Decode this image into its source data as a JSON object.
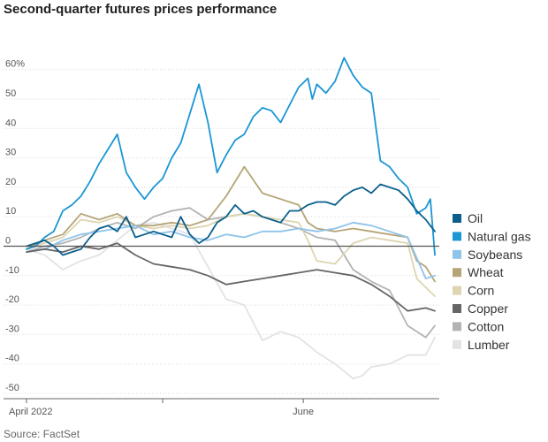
{
  "chart_data": {
    "type": "line",
    "title": "Second-quarter futures prices performance",
    "source": "Source: FactSet",
    "y_unit_suffix": "%",
    "ylim": [
      -50,
      65
    ],
    "y_ticks": [
      60,
      50,
      40,
      30,
      20,
      10,
      0,
      -10,
      -20,
      -30,
      -40,
      -50
    ],
    "x_ticks": [
      {
        "t": 0,
        "label": "April 2022"
      },
      {
        "t": 30,
        "label": ""
      },
      {
        "t": 61,
        "label": "June"
      }
    ],
    "x_range": [
      0,
      90
    ],
    "zero_line": true,
    "legend_position": "right",
    "series": [
      {
        "name": "Oil",
        "color": "#0a5f8c",
        "t": [
          0,
          2,
          4,
          6,
          8,
          10,
          12,
          14,
          16,
          18,
          20,
          22,
          24,
          26,
          28,
          30,
          32,
          34,
          36,
          38,
          40,
          42,
          44,
          46,
          48,
          50,
          52,
          54,
          56,
          58,
          60,
          62,
          64,
          66,
          68,
          70,
          72,
          74,
          76,
          78,
          80,
          82,
          84,
          86,
          88,
          90
        ],
        "y": [
          0,
          1,
          2,
          0,
          -3,
          -2,
          -1,
          3,
          6,
          7,
          5,
          10,
          3,
          4,
          5,
          4,
          3,
          10,
          4,
          1,
          3,
          8,
          10,
          14,
          11,
          12,
          10,
          9,
          8,
          12,
          12,
          14,
          15,
          15,
          14,
          17,
          19,
          20,
          18,
          21,
          20,
          19,
          16,
          12,
          9,
          5
        ]
      },
      {
        "name": "Natural gas",
        "color": "#1b96d4",
        "t": [
          0,
          2,
          4,
          6,
          8,
          10,
          12,
          14,
          16,
          18,
          20,
          22,
          24,
          26,
          28,
          30,
          32,
          34,
          36,
          38,
          40,
          42,
          44,
          46,
          48,
          50,
          52,
          54,
          56,
          58,
          60,
          62,
          63,
          64,
          66,
          68,
          70,
          72,
          74,
          76,
          78,
          80,
          82,
          84,
          86,
          88,
          89,
          90
        ],
        "y": [
          -1,
          0,
          3,
          5,
          12,
          14,
          17,
          22,
          28,
          33,
          38,
          25,
          20,
          16,
          20,
          23,
          30,
          35,
          45,
          55,
          42,
          25,
          31,
          36,
          38,
          44,
          47,
          46,
          42,
          48,
          54,
          57,
          50,
          55,
          52,
          56,
          64,
          58,
          54,
          52,
          29,
          27,
          23,
          20,
          11,
          13,
          16,
          -3
        ]
      },
      {
        "name": "Soybeans",
        "color": "#8ec4ea",
        "t": [
          0,
          4,
          8,
          12,
          16,
          20,
          24,
          28,
          32,
          36,
          40,
          44,
          48,
          52,
          56,
          60,
          64,
          68,
          72,
          76,
          80,
          84,
          88,
          90
        ],
        "y": [
          -2,
          -1,
          2,
          4,
          5,
          6,
          7,
          4,
          5,
          3,
          2,
          4,
          3,
          5,
          5,
          6,
          5,
          6,
          8,
          7,
          5,
          3,
          -11,
          -10
        ]
      },
      {
        "name": "Wheat",
        "color": "#b5a477",
        "t": [
          0,
          4,
          8,
          12,
          16,
          20,
          24,
          28,
          32,
          36,
          40,
          44,
          48,
          52,
          56,
          60,
          62,
          64,
          68,
          72,
          76,
          80,
          84,
          86,
          88,
          90
        ],
        "y": [
          -1,
          2,
          4,
          11,
          9,
          11,
          7,
          7,
          8,
          7,
          9,
          17,
          27,
          18,
          16,
          14,
          8,
          6,
          5,
          6,
          5,
          4,
          3,
          -5,
          -7,
          -12
        ]
      },
      {
        "name": "Corn",
        "color": "#ddd5b0",
        "t": [
          0,
          4,
          8,
          12,
          16,
          20,
          24,
          28,
          32,
          36,
          40,
          44,
          48,
          52,
          56,
          60,
          62,
          64,
          68,
          72,
          76,
          80,
          84,
          86,
          88,
          90
        ],
        "y": [
          -1,
          1,
          3,
          9,
          8,
          10,
          7,
          6,
          7,
          6,
          7,
          10,
          11,
          10,
          9,
          8,
          2,
          -5,
          -6,
          1,
          3,
          2,
          1,
          -11,
          -14,
          -17
        ]
      },
      {
        "name": "Copper",
        "color": "#666666",
        "t": [
          0,
          4,
          8,
          12,
          16,
          20,
          24,
          28,
          32,
          36,
          40,
          44,
          48,
          52,
          56,
          60,
          64,
          68,
          72,
          76,
          80,
          84,
          88,
          90
        ],
        "y": [
          -2,
          -1,
          -2,
          0,
          -1,
          1,
          -3,
          -6,
          -7,
          -8,
          -10,
          -13,
          -12,
          -11,
          -10,
          -9,
          -8,
          -9,
          -10,
          -13,
          -17,
          -22,
          -21,
          -22
        ]
      },
      {
        "name": "Cotton",
        "color": "#b3b3b3",
        "t": [
          0,
          4,
          8,
          12,
          16,
          20,
          24,
          28,
          32,
          36,
          40,
          44,
          48,
          52,
          56,
          60,
          64,
          68,
          72,
          76,
          80,
          84,
          88,
          90
        ],
        "y": [
          -2,
          0,
          1,
          3,
          6,
          8,
          6,
          10,
          12,
          13,
          9,
          10,
          11,
          10,
          8,
          6,
          3,
          2,
          -8,
          -12,
          -15,
          -27,
          -31,
          -27
        ]
      },
      {
        "name": "Lumber",
        "color": "#e3e3e3",
        "t": [
          0,
          4,
          8,
          12,
          16,
          20,
          24,
          28,
          32,
          36,
          40,
          44,
          48,
          52,
          56,
          60,
          64,
          68,
          72,
          74,
          76,
          80,
          84,
          88,
          90
        ],
        "y": [
          -1,
          -3,
          -8,
          -5,
          -3,
          2,
          7,
          8,
          6,
          4,
          -7,
          -18,
          -20,
          -32,
          -29,
          -31,
          -36,
          -40,
          -45,
          -44,
          -41,
          -40,
          -37,
          -37,
          -31
        ]
      }
    ]
  }
}
